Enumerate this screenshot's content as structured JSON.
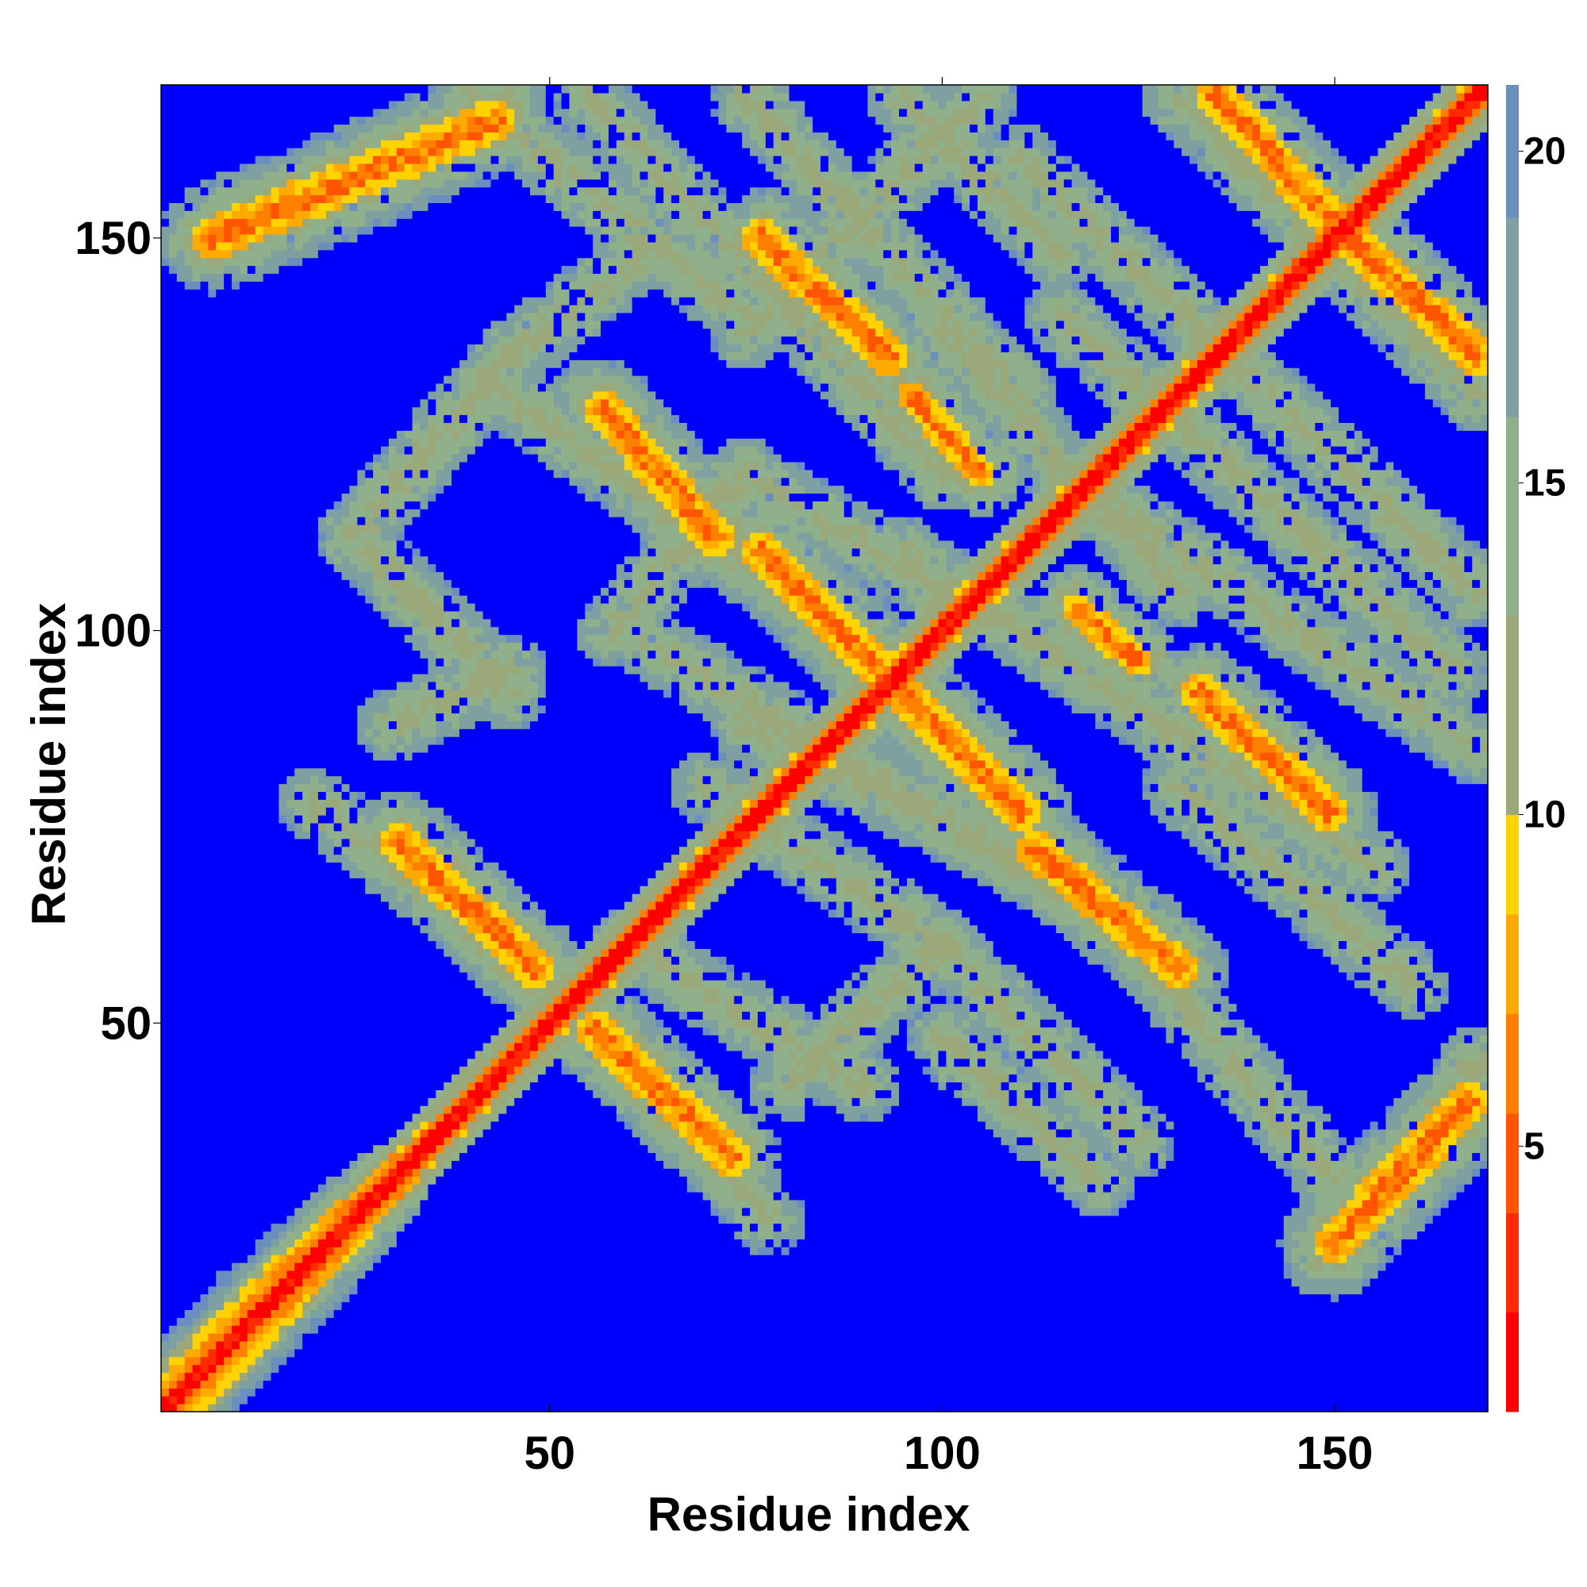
{
  "chart_data": {
    "type": "heatmap",
    "title": "",
    "xlabel": "Residue index",
    "ylabel": "Residue index",
    "n_residues": 169,
    "xlim": [
      1,
      169
    ],
    "ylim": [
      1,
      169
    ],
    "x_ticks": [
      50,
      100,
      150
    ],
    "y_ticks": [
      50,
      100,
      150
    ],
    "colorbar": {
      "ticks": [
        5,
        10,
        15,
        20
      ],
      "range": [
        1,
        21
      ],
      "colors": [
        "#ff0000",
        "#ff2a00",
        "#ff5500",
        "#ff8000",
        "#ffaa00",
        "#ffd200",
        "#9aa87a",
        "#8fb08a",
        "#7fa0a0",
        "#6a8fbf",
        "#0000ff"
      ],
      "levels": [
        1,
        2.5,
        4,
        5.5,
        7,
        8.5,
        10,
        13,
        16,
        19,
        21
      ]
    },
    "background_value": 21,
    "diagonal_band": {
      "core_halfwidth": 1.2,
      "orange_halfwidth": 2.6,
      "halo_halfwidth": 5.5
    },
    "n_terminal_widening": {
      "until_residue": 32,
      "extra_halfwidth": 6
    },
    "contact_segments": [
      {
        "from": [
          7,
          150
        ],
        "to": [
          43,
          165
        ],
        "kind": "parallel",
        "width": 2.2
      },
      {
        "from": [
          31,
          73
        ],
        "to": [
          48,
          57
        ],
        "kind": "anti",
        "width": 2.0
      },
      {
        "from": [
          56,
          49
        ],
        "to": [
          73,
          33
        ],
        "kind": "anti",
        "width": 2.0
      },
      {
        "from": [
          57,
          128
        ],
        "to": [
          71,
          112
        ],
        "kind": "anti",
        "width": 2.0
      },
      {
        "from": [
          77,
          150
        ],
        "to": [
          93,
          135
        ],
        "kind": "anti",
        "width": 2.0
      },
      {
        "from": [
          77,
          110
        ],
        "to": [
          95,
          92
        ],
        "kind": "anti",
        "width": 2.0
      },
      {
        "from": [
          95,
          92
        ],
        "to": [
          110,
          77
        ],
        "kind": "anti",
        "width": 2.0
      },
      {
        "from": [
          112,
          72
        ],
        "to": [
          130,
          57
        ],
        "kind": "anti",
        "width": 2.0
      },
      {
        "from": [
          133,
          92
        ],
        "to": [
          149,
          77
        ],
        "kind": "anti",
        "width": 2.0
      },
      {
        "from": [
          135,
          168
        ],
        "to": [
          150,
          152
        ],
        "kind": "anti",
        "width": 2.0
      },
      {
        "from": [
          152,
          150
        ],
        "to": [
          168,
          135
        ],
        "kind": "anti",
        "width": 2.0
      },
      {
        "from": [
          150,
          22
        ],
        "to": [
          167,
          40
        ],
        "kind": "parallel",
        "width": 2.2
      },
      {
        "from": [
          96,
          130
        ],
        "to": [
          105,
          120
        ],
        "kind": "anti",
        "width": 1.6
      },
      {
        "from": [
          117,
          103
        ],
        "to": [
          125,
          96
        ],
        "kind": "anti",
        "width": 1.6
      }
    ],
    "halo_segments": [
      {
        "from": [
          5,
          149
        ],
        "to": [
          45,
          168
        ]
      },
      {
        "from": [
          40,
          168
        ],
        "to": [
          75,
          140
        ]
      },
      {
        "from": [
          55,
          168
        ],
        "to": [
          100,
          120
        ]
      },
      {
        "from": [
          75,
          168
        ],
        "to": [
          110,
          130
        ]
      },
      {
        "from": [
          95,
          168
        ],
        "to": [
          115,
          148
        ]
      },
      {
        "from": [
          105,
          168
        ],
        "to": [
          75,
          138
        ]
      },
      {
        "from": [
          130,
          168
        ],
        "to": [
          168,
          130
        ]
      },
      {
        "from": [
          110,
          160
        ],
        "to": [
          168,
          105
        ]
      },
      {
        "from": [
          25,
          112
        ],
        "to": [
          45,
          135
        ]
      },
      {
        "from": [
          45,
          135
        ],
        "to": [
          62,
          148
        ]
      },
      {
        "from": [
          25,
          112
        ],
        "to": [
          45,
          92
        ]
      },
      {
        "from": [
          42,
          132
        ],
        "to": [
          75,
          108
        ]
      },
      {
        "from": [
          55,
          130
        ],
        "to": [
          100,
          85
        ]
      },
      {
        "from": [
          60,
          100
        ],
        "to": [
          130,
          58
        ]
      },
      {
        "from": [
          58,
          100
        ],
        "to": [
          75,
          120
        ]
      },
      {
        "from": [
          75,
          120
        ],
        "to": [
          100,
          105
        ]
      },
      {
        "from": [
          100,
          138
        ],
        "to": [
          130,
          105
        ]
      },
      {
        "from": [
          115,
          140
        ],
        "to": [
          165,
          95
        ]
      },
      {
        "from": [
          115,
          120
        ],
        "to": [
          168,
          85
        ]
      },
      {
        "from": [
          95,
          110
        ],
        "to": [
          155,
          70
        ]
      },
      {
        "from": [
          20,
          78
        ],
        "to": [
          50,
          55
        ]
      },
      {
        "from": [
          30,
          88
        ],
        "to": [
          45,
          95
        ]
      },
      {
        "from": [
          60,
          60
        ],
        "to": [
          90,
          42
        ]
      },
      {
        "from": [
          55,
          50
        ],
        "to": [
          78,
          25
        ]
      },
      {
        "from": [
          80,
          42
        ],
        "to": [
          100,
          60
        ]
      },
      {
        "from": [
          100,
          60
        ],
        "to": [
          125,
          35
        ]
      },
      {
        "from": [
          100,
          48
        ],
        "to": [
          120,
          30
        ]
      },
      {
        "from": [
          130,
          80
        ],
        "to": [
          160,
          55
        ]
      },
      {
        "from": [
          120,
          65
        ],
        "to": [
          150,
          30
        ]
      },
      {
        "from": [
          148,
          20
        ],
        "to": [
          168,
          45
        ]
      },
      {
        "from": [
          70,
          80
        ],
        "to": [
          100,
          60
        ]
      },
      {
        "from": [
          75,
          88
        ],
        "to": [
          110,
          70
        ]
      }
    ]
  }
}
